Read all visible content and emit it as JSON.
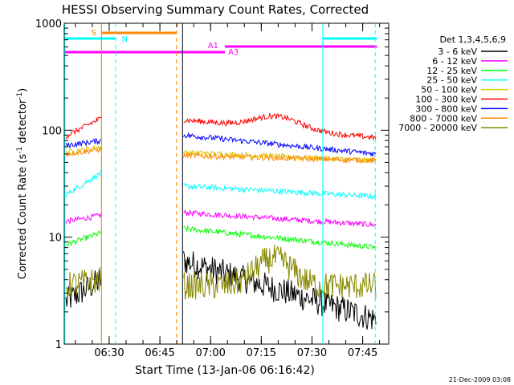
{
  "chart_data": {
    "type": "line",
    "title": "HESSI Observing Summary Count Rates, Corrected",
    "xlabel": "Start Time (13-Jan-06 06:16:42)",
    "ylabel_main": "Corrected Count Rate (s",
    "ylabel_sup1": "-1",
    "ylabel_mid": " detector",
    "ylabel_sup2": "-1",
    "ylabel_end": ")",
    "footer": "21-Dec-2009 03:08",
    "y_scale": "log",
    "ylim": [
      1,
      1000
    ],
    "xlim_minutes": [
      0,
      96
    ],
    "x_ticks": [
      {
        "min": 13.3,
        "label": "06:30"
      },
      {
        "min": 28.3,
        "label": "06:45"
      },
      {
        "min": 43.3,
        "label": "07:00"
      },
      {
        "min": 58.3,
        "label": "07:15"
      },
      {
        "min": 73.3,
        "label": "07:30"
      },
      {
        "min": 88.3,
        "label": "07:45"
      }
    ],
    "y_ticks": [
      {
        "value": 1,
        "label": "1"
      },
      {
        "value": 10,
        "label": "10"
      },
      {
        "value": 100,
        "label": "100"
      },
      {
        "value": 1000,
        "label": "1000"
      }
    ],
    "legend_title": "Det 1,3,4,5,6,9",
    "legend_position": "right",
    "series": [
      {
        "name": "3 - 6 keV",
        "color": "#000000",
        "pre": 2.5,
        "pre_end": 4,
        "post": 6,
        "post_end": 1.7
      },
      {
        "name": "6 - 12 keV",
        "color": "#ff00ff",
        "pre": 14,
        "pre_end": 16,
        "post": 17,
        "post_end": 13
      },
      {
        "name": "12 - 25 keV",
        "color": "#00ff00",
        "pre": 8.5,
        "pre_end": 11,
        "post": 12,
        "post_end": 8
      },
      {
        "name": "25 - 50 keV",
        "color": "#00ffff",
        "pre": 25,
        "pre_end": 40,
        "post": 30,
        "post_end": 24
      },
      {
        "name": "50 - 100 keV",
        "color": "#ddcc00",
        "pre": 62,
        "pre_end": 70,
        "post": 62,
        "post_end": 52
      },
      {
        "name": "100 - 300 keV",
        "color": "#ff0000",
        "pre": 88,
        "pre_end": 130,
        "post": 125,
        "post_end": 85
      },
      {
        "name": "300 - 800 keV",
        "color": "#0000ff",
        "pre": 72,
        "pre_end": 80,
        "post": 90,
        "post_end": 60
      },
      {
        "name": "800 - 7000 keV",
        "color": "#ff8800",
        "pre": 60,
        "pre_end": 66,
        "post": 58,
        "post_end": 52
      },
      {
        "name": "7000 - 20000 keV",
        "color": "#888800",
        "pre": 3.5,
        "pre_end": 4,
        "post": 3.5,
        "post_end": 3.5
      }
    ],
    "flags": [
      {
        "label": "S",
        "color": "#ff8800"
      },
      {
        "label": "N",
        "color": "#00ffff"
      },
      {
        "label": "A1",
        "color": "#ff00ff"
      },
      {
        "label": "A3",
        "color": "#ff00ff"
      }
    ]
  }
}
